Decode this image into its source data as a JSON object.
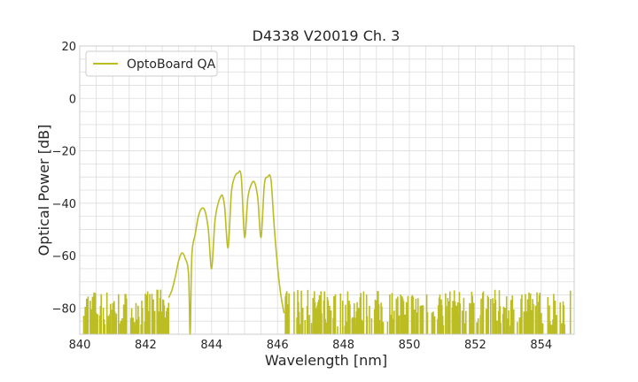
{
  "chart_data": {
    "type": "line",
    "title": "D4338 V20019 Ch. 3",
    "xlabel": "Wavelength [nm]",
    "ylabel": "Optical Power [dB]",
    "xlim": [
      840,
      855
    ],
    "ylim": [
      -90,
      20
    ],
    "xticks": [
      840,
      842,
      844,
      846,
      848,
      850,
      852,
      854
    ],
    "yticks": [
      20,
      0,
      -20,
      -40,
      -60,
      -80
    ],
    "grid": true,
    "legend": {
      "position": "top-left",
      "entries": [
        "OptoBoard QA"
      ]
    },
    "series": [
      {
        "name": "OptoBoard QA",
        "color": "#bcbd22",
        "x": [
          842.7,
          842.8,
          842.9,
          843.0,
          843.1,
          843.2,
          843.3,
          843.35,
          843.4,
          843.5,
          843.6,
          843.7,
          843.8,
          843.9,
          844.0,
          844.1,
          844.2,
          844.3,
          844.35,
          844.4,
          844.5,
          844.6,
          844.7,
          844.8,
          844.9,
          845.0,
          845.1,
          845.2,
          845.3,
          845.4,
          845.5,
          845.6,
          845.7,
          845.8,
          845.9,
          846.0,
          846.1,
          846.2
        ],
        "values": [
          -76,
          -73,
          -68,
          -62,
          -59,
          -61,
          -67,
          -90,
          -60,
          -52,
          -45,
          -42,
          -43,
          -50,
          -65,
          -47,
          -40,
          -37,
          -38,
          -42,
          -57,
          -36,
          -30,
          -28.5,
          -30,
          -53,
          -38,
          -33,
          -32,
          -38,
          -53,
          -33,
          -30,
          -31,
          -49,
          -64,
          -75,
          -82
        ]
      }
    ],
    "noise_floor": {
      "x_from": 840.1,
      "x_to": 854.9,
      "min": -90,
      "max": -73
    }
  }
}
